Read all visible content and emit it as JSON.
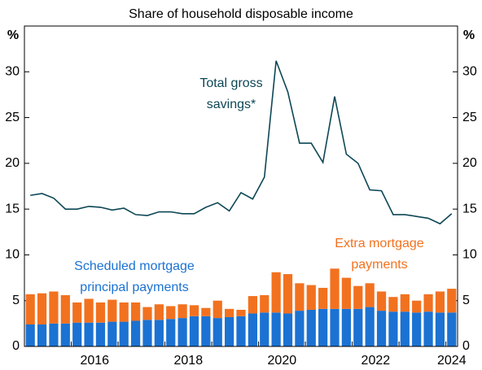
{
  "chart_data": {
    "type": "bar-line",
    "subtitle": "Share of household disposable income",
    "y_label": "%",
    "y2_label": "%",
    "x": [
      2015,
      2015,
      2015,
      2015,
      2016,
      2016,
      2016,
      2016,
      2017,
      2017,
      2017,
      2017,
      2018,
      2018,
      2018,
      2018,
      2019,
      2019,
      2019,
      2019,
      2020,
      2020,
      2020,
      2020,
      2021,
      2021,
      2021,
      2021,
      2022,
      2022,
      2022,
      2022,
      2023,
      2023,
      2023,
      2023,
      2024
    ],
    "xticks": [
      2016,
      2018,
      2020,
      2022,
      2024
    ],
    "ylim": [
      0,
      35
    ],
    "yticks": [
      0,
      5,
      10,
      15,
      20,
      25,
      30
    ],
    "y2lim": [
      0,
      35
    ],
    "y2ticks": [
      0,
      5,
      10,
      15,
      20,
      25,
      30
    ],
    "series": [
      {
        "label": [
          "Scheduled mortgage",
          "principal payments"
        ],
        "kind": "bar",
        "color": "#1b72d2",
        "values": [
          2.4,
          2.4,
          2.5,
          2.5,
          2.6,
          2.6,
          2.6,
          2.7,
          2.7,
          2.8,
          2.9,
          2.9,
          3.0,
          3.1,
          3.3,
          3.3,
          3.1,
          3.2,
          3.3,
          3.6,
          3.7,
          3.7,
          3.6,
          3.9,
          4.0,
          4.1,
          4.1,
          4.1,
          4.1,
          4.3,
          3.9,
          3.8,
          3.8,
          3.7,
          3.8,
          3.7,
          3.7
        ]
      },
      {
        "label": [
          "Extra mortgage",
          "payments"
        ],
        "kind": "bar",
        "color": "#f2711f",
        "values": [
          3.3,
          3.4,
          3.5,
          3.1,
          2.2,
          2.6,
          2.2,
          2.4,
          2.1,
          2.0,
          1.4,
          1.7,
          1.4,
          1.5,
          1.2,
          0.9,
          1.9,
          0.9,
          0.7,
          1.9,
          1.9,
          4.4,
          4.3,
          3.0,
          2.7,
          2.3,
          4.4,
          3.4,
          2.5,
          2.6,
          2.1,
          1.6,
          1.9,
          1.3,
          1.9,
          2.3,
          2.6
        ]
      },
      {
        "label": [
          "Total gross",
          "savings*"
        ],
        "kind": "line",
        "color": "#0d4756",
        "values": [
          16.5,
          16.7,
          16.2,
          15.0,
          15.0,
          15.3,
          15.2,
          14.9,
          15.1,
          14.4,
          14.3,
          14.7,
          14.7,
          14.5,
          14.5,
          15.2,
          15.7,
          14.8,
          16.8,
          16.1,
          18.5,
          31.2,
          27.8,
          22.2,
          22.2,
          20.1,
          27.3,
          21.0,
          20.0,
          17.1,
          17.0,
          14.4,
          14.4,
          14.2,
          14.0,
          13.4,
          14.5
        ]
      }
    ]
  }
}
